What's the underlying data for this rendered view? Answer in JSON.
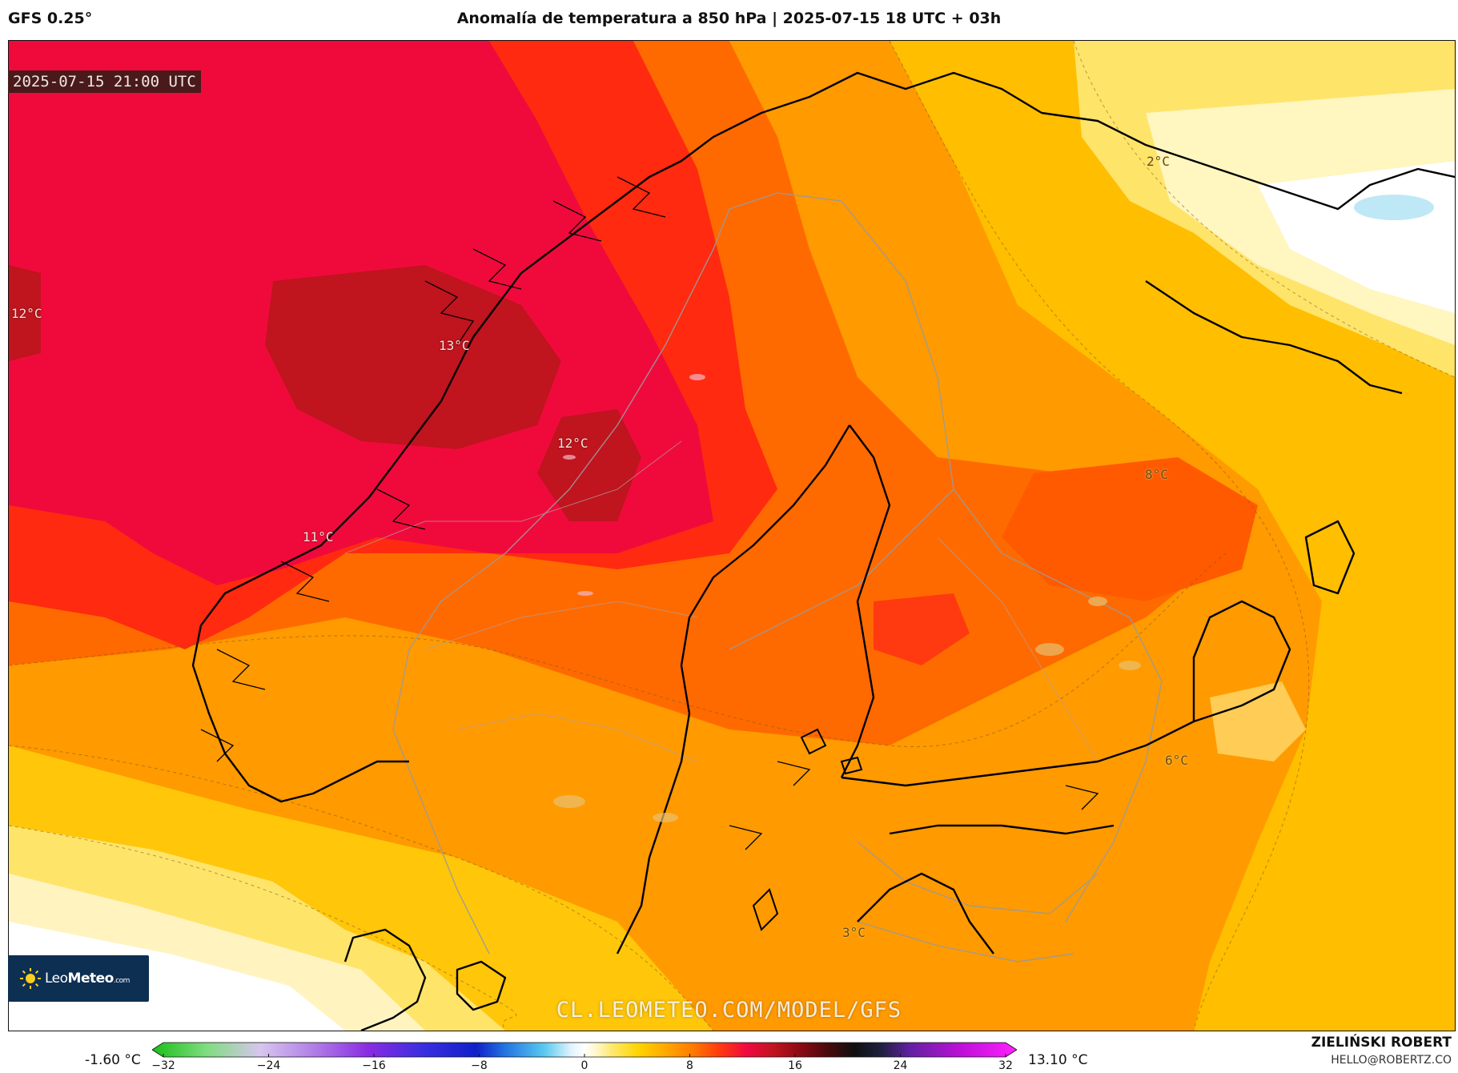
{
  "header": {
    "model": "GFS 0.25°",
    "title": "Anomalía de temperatura a 850 hPa | 2025-07-15 18 UTC + 03h"
  },
  "map": {
    "valid_time": "2025-07-15 21:00 UTC",
    "isotherm_labels": [
      "12°C",
      "13°C",
      "12°C",
      "11°C",
      "8°C",
      "6°C",
      "2°C",
      "3°C"
    ],
    "watermark": "CL.LEOMETEO.COM/MODEL/GFS"
  },
  "logo": {
    "brand_light": "Leo",
    "brand_bold": "Meteo",
    "brand_domain": ".com"
  },
  "colorbar": {
    "min_label": "-1.60 °C",
    "max_label": "13.10 °C",
    "ticks": [
      "−32",
      "−24",
      "−16",
      "−8",
      "0",
      "8",
      "16",
      "24",
      "32"
    ],
    "tick_values": [
      -32,
      -24,
      -16,
      -8,
      0,
      8,
      16,
      24,
      32
    ],
    "range": [
      -32,
      32
    ],
    "stops": [
      {
        "v": -32,
        "c": "#18c018"
      },
      {
        "v": -28,
        "c": "#7fdc7f"
      },
      {
        "v": -24,
        "c": "#d7c6ee"
      },
      {
        "v": -20,
        "c": "#b07ee6"
      },
      {
        "v": -16,
        "c": "#8a2be2"
      },
      {
        "v": -12,
        "c": "#3a2ee0"
      },
      {
        "v": -8,
        "c": "#1020c8"
      },
      {
        "v": -6,
        "c": "#2070e0"
      },
      {
        "v": -3,
        "c": "#58c8f0"
      },
      {
        "v": -1,
        "c": "#e0f4fc"
      },
      {
        "v": 0,
        "c": "#ffffff"
      },
      {
        "v": 1,
        "c": "#fff6c0"
      },
      {
        "v": 2,
        "c": "#ffe870"
      },
      {
        "v": 4,
        "c": "#ffd400"
      },
      {
        "v": 6,
        "c": "#ffa800"
      },
      {
        "v": 8,
        "c": "#ff7a00"
      },
      {
        "v": 10,
        "c": "#ff3a10"
      },
      {
        "v": 12,
        "c": "#f00a40"
      },
      {
        "v": 14,
        "c": "#c0141e"
      },
      {
        "v": 16,
        "c": "#8a0a14"
      },
      {
        "v": 18,
        "c": "#4a0a0a"
      },
      {
        "v": 20,
        "c": "#101010"
      },
      {
        "v": 22,
        "c": "#202040"
      },
      {
        "v": 24,
        "c": "#6020a0"
      },
      {
        "v": 28,
        "c": "#c010d8"
      },
      {
        "v": 32,
        "c": "#ff20ff"
      }
    ]
  },
  "author": {
    "name": "ZIELIŃSKI ROBERT",
    "email": "HELLO@ROBERTZ.CO"
  }
}
